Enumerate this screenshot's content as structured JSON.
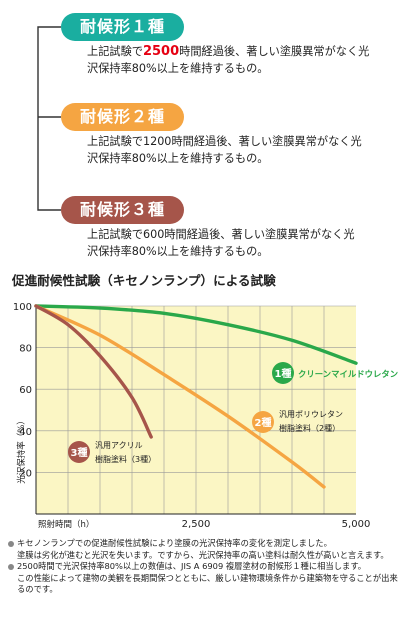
{
  "grades": [
    {
      "label": "耐候形１種",
      "color": "#1aaea0",
      "desc_line1_pre": "上記試験で",
      "desc_hours": "2500",
      "desc_line1_post": "時間経過後、著しい塗膜異常がなく光",
      "desc_line2": "沢保持率80%以上を維持するもの。",
      "hours_color": "#e60012"
    },
    {
      "label": "耐候形２種",
      "color": "#f5a542",
      "desc_line1_pre": "上記試験で",
      "desc_hours": "1200",
      "desc_line1_post": "時間経過後、著しい塗膜異常がなく光",
      "desc_line2": "沢保持率80%以上を維持するもの。",
      "hours_color": "#222222"
    },
    {
      "label": "耐候形３種",
      "color": "#a6554a",
      "desc_line1_pre": "上記試験で",
      "desc_hours": "600",
      "desc_line1_post": "時間経過後、著しい塗膜異常がなく光",
      "desc_line2": "沢保持率80%以上を維持するもの。",
      "hours_color": "#222222"
    }
  ],
  "chart_title": "促進耐候性試験（キセノンランプ）による試験",
  "chart_data": {
    "type": "line",
    "xlabel": "照射時間（h）",
    "ylabel": "光沢保持率（%）",
    "xlim": [
      0,
      5000
    ],
    "ylim": [
      0,
      100
    ],
    "xticks": [
      "2,500",
      "5,000"
    ],
    "yticks": [
      "100",
      "80",
      "60",
      "40",
      "20"
    ],
    "grid": true,
    "series": [
      {
        "name": "クリーンマイルドウレタン",
        "badge": "1種",
        "color": "#2aa84a",
        "x": [
          0,
          1000,
          2000,
          3000,
          4000,
          5000
        ],
        "y": [
          100,
          99,
          96.5,
          91,
          83.5,
          72.5
        ]
      },
      {
        "name": "汎用ポリウレタン",
        "badge": "2種",
        "sub": "樹脂塗料（2種）",
        "color": "#f5a542",
        "x": [
          0,
          1000,
          2000,
          3000,
          4000,
          4500
        ],
        "y": [
          100,
          86,
          67,
          47,
          25,
          13
        ]
      },
      {
        "name": "汎用アクリル",
        "badge": "3種",
        "sub": "樹脂塗料（3種）",
        "color": "#a6554a",
        "x": [
          0,
          500,
          1000,
          1500,
          1800
        ],
        "y": [
          100,
          91,
          76,
          56,
          37
        ]
      }
    ]
  },
  "notes": {
    "line1": "キセノンランプでの促進耐候性試験により塗膜の光沢保持率の変化を測定しました。",
    "line2": "塗膜は劣化が進むと光沢を失います。ですから、光沢保持率の高い塗料は耐久性が高いと言えます。",
    "line3": "2500時間で光沢保持率80%以上の数値は、JIS A 6909 複層塗材の耐候形１種に相当します。",
    "line4": "この性能によって建物の美観を長期間保つとともに、厳しい建物環境条件から建築物を守ることが出来",
    "line5": "るのです。"
  }
}
